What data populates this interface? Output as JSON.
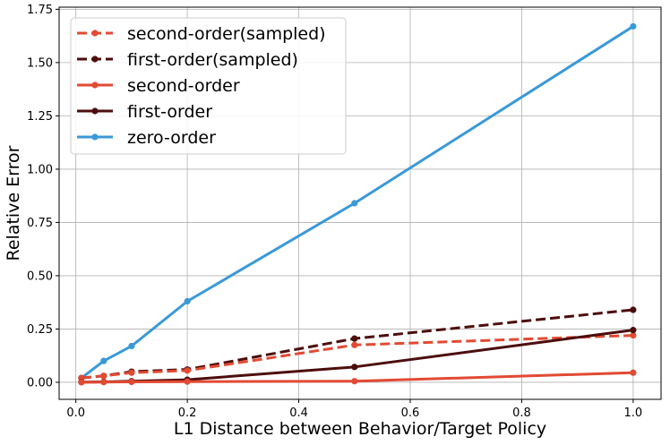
{
  "chart_data": {
    "type": "line",
    "xlabel": "L1 Distance between Behavior/Target Policy",
    "ylabel": "Relative Error",
    "xlim": [
      -0.03,
      1.05
    ],
    "ylim": [
      -0.08,
      1.76
    ],
    "x_ticks": [
      0.0,
      0.2,
      0.4,
      0.6,
      0.8,
      1.0
    ],
    "x_tick_labels": [
      "0.0",
      "0.2",
      "0.4",
      "0.6",
      "0.8",
      "1.0"
    ],
    "y_ticks": [
      0.0,
      0.25,
      0.5,
      0.75,
      1.0,
      1.25,
      1.5,
      1.75
    ],
    "y_tick_labels": [
      "0.00",
      "0.25",
      "0.50",
      "0.75",
      "1.00",
      "1.25",
      "1.50",
      "1.75"
    ],
    "grid": true,
    "legend_position": "top-left",
    "x": [
      0.01,
      0.05,
      0.1,
      0.2,
      0.5,
      1.0
    ],
    "series": [
      {
        "name": "second-order(sampled)",
        "color": "#e24a33",
        "style": "dashed",
        "values": [
          0.02,
          0.03,
          0.045,
          0.055,
          0.175,
          0.22
        ]
      },
      {
        "name": "first-order(sampled)",
        "color": "#4d0d0d",
        "style": "dashed",
        "values": [
          0.02,
          0.03,
          0.05,
          0.06,
          0.205,
          0.34
        ]
      },
      {
        "name": "second-order",
        "color": "#e24a33",
        "style": "solid",
        "values": [
          0.0,
          0.001,
          0.002,
          0.003,
          0.005,
          0.045
        ]
      },
      {
        "name": "first-order",
        "color": "#4d0d0d",
        "style": "solid",
        "values": [
          0.001,
          0.002,
          0.005,
          0.012,
          0.072,
          0.245
        ]
      },
      {
        "name": "zero-order",
        "color": "#3a99d8",
        "style": "solid",
        "values": [
          0.02,
          0.1,
          0.17,
          0.38,
          0.84,
          1.67
        ]
      }
    ]
  }
}
